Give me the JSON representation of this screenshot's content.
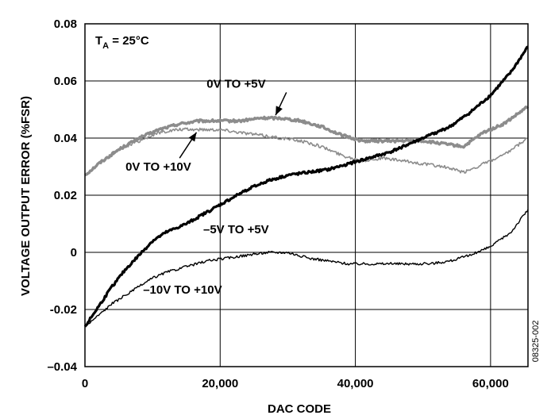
{
  "chart_data": {
    "type": "line",
    "xlabel": "DAC CODE",
    "ylabel": "VOLTAGE OUTPUT ERROR (%FSR)",
    "xlim": [
      0,
      65535
    ],
    "ylim": [
      -0.04,
      0.08
    ],
    "x_ticks": [
      0,
      20000,
      40000,
      60000
    ],
    "x_tick_labels": [
      "0",
      "20,000",
      "40,000",
      "60,000"
    ],
    "y_ticks": [
      -0.04,
      -0.02,
      0,
      0.02,
      0.04,
      0.06,
      0.08
    ],
    "y_tick_labels": [
      "–0.04",
      "-0.02",
      "0",
      "0.02",
      "0.04",
      "0.06",
      "0.08"
    ],
    "grid": true,
    "temperature_label": {
      "main": "T",
      "sub": "A",
      "rest": " = 25°C"
    },
    "figure_id": "08325-002",
    "series": [
      {
        "name": "0V TO +5V",
        "color": "#8c8c8c",
        "x": [
          0,
          2000,
          5000,
          8000,
          11000,
          14000,
          17000,
          20000,
          23000,
          26000,
          29000,
          32000,
          35000,
          38000,
          41000,
          44000,
          47000,
          50000,
          53000,
          56000,
          59000,
          62000,
          65535
        ],
        "y": [
          0.027,
          0.031,
          0.036,
          0.04,
          0.043,
          0.045,
          0.046,
          0.046,
          0.046,
          0.047,
          0.047,
          0.046,
          0.044,
          0.041,
          0.039,
          0.039,
          0.039,
          0.039,
          0.038,
          0.037,
          0.042,
          0.045,
          0.051
        ]
      },
      {
        "name": "0V TO +10V",
        "color": "#8c8c8c",
        "x": [
          0,
          2000,
          5000,
          8000,
          11000,
          14000,
          17000,
          20000,
          23000,
          26000,
          29000,
          32000,
          35000,
          38000,
          41000,
          44000,
          47000,
          50000,
          53000,
          56000,
          59000,
          62000,
          65535
        ],
        "y": [
          0.027,
          0.031,
          0.036,
          0.039,
          0.042,
          0.043,
          0.043,
          0.043,
          0.042,
          0.041,
          0.04,
          0.039,
          0.037,
          0.034,
          0.032,
          0.033,
          0.032,
          0.031,
          0.03,
          0.028,
          0.031,
          0.034,
          0.04
        ]
      },
      {
        "name": "–5V TO +5V",
        "color": "#000000",
        "x": [
          0,
          2000,
          4000,
          6000,
          8000,
          10000,
          12000,
          15000,
          18000,
          21000,
          24000,
          27000,
          30000,
          33000,
          36000,
          39000,
          42000,
          45000,
          48000,
          51000,
          54000,
          57000,
          60000,
          63000,
          65535
        ],
        "y": [
          -0.026,
          -0.019,
          -0.012,
          -0.006,
          -0.001,
          0.004,
          0.007,
          0.01,
          0.014,
          0.018,
          0.022,
          0.025,
          0.027,
          0.028,
          0.029,
          0.031,
          0.033,
          0.035,
          0.038,
          0.041,
          0.044,
          0.049,
          0.055,
          0.063,
          0.072
        ]
      },
      {
        "name": "–10V TO +10V",
        "color": "#000000",
        "x": [
          0,
          2000,
          4000,
          6000,
          8000,
          10000,
          12000,
          15000,
          18000,
          21000,
          24000,
          27000,
          30000,
          33000,
          36000,
          39000,
          42000,
          45000,
          48000,
          51000,
          54000,
          57000,
          60000,
          63000,
          65535
        ],
        "y": [
          -0.026,
          -0.022,
          -0.018,
          -0.015,
          -0.012,
          -0.009,
          -0.007,
          -0.005,
          -0.003,
          -0.002,
          -0.001,
          0.0,
          0.0,
          -0.002,
          -0.003,
          -0.004,
          -0.004,
          -0.004,
          -0.004,
          -0.004,
          -0.003,
          -0.001,
          0.002,
          0.007,
          0.015
        ]
      }
    ],
    "annotations": [
      {
        "text": "0V TO +5V",
        "label_x": 18000,
        "label_y": 0.059,
        "arrow_from": [
          29800,
          0.056
        ],
        "arrow_to": [
          28200,
          0.048
        ]
      },
      {
        "text": "0V TO +10V",
        "label_x": 6000,
        "label_y": 0.03,
        "arrow_from": [
          14000,
          0.033
        ],
        "arrow_to": [
          16500,
          0.042
        ]
      },
      {
        "text": "–5V TO +5V",
        "label_x": 17500,
        "label_y": 0.008
      },
      {
        "text": "–10V TO +10V",
        "label_x": 8600,
        "label_y": -0.013
      }
    ]
  }
}
